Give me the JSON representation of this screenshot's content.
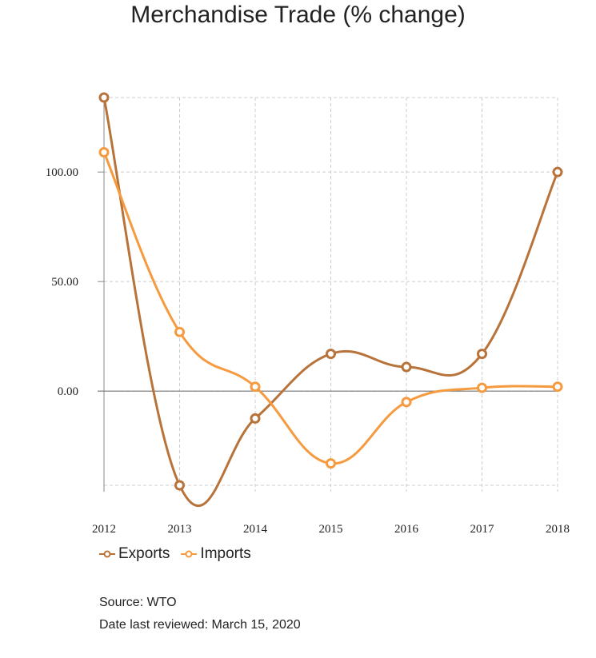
{
  "title": "Merchandise Trade (% change)",
  "chart_data": {
    "type": "line",
    "title": "Merchandise Trade (% change)",
    "x": [
      "2012",
      "2013",
      "2014",
      "2015",
      "2016",
      "2017",
      "2018"
    ],
    "series": [
      {
        "name": "Exports",
        "color": "#b8733a",
        "values": [
          134,
          -43,
          -12.5,
          17,
          11,
          17,
          100
        ]
      },
      {
        "name": "Imports",
        "color": "#f59a3f",
        "values": [
          109,
          27,
          2,
          -33,
          -5,
          1.5,
          2
        ]
      }
    ],
    "yticks": [
      "100.00",
      "50.00",
      "0.00"
    ],
    "ylim": [
      -43,
      134
    ],
    "grid": true,
    "legend_position": "bottom-left"
  },
  "footer": {
    "source": "Source: WTO",
    "reviewed": "Date last reviewed: March 15, 2020"
  }
}
